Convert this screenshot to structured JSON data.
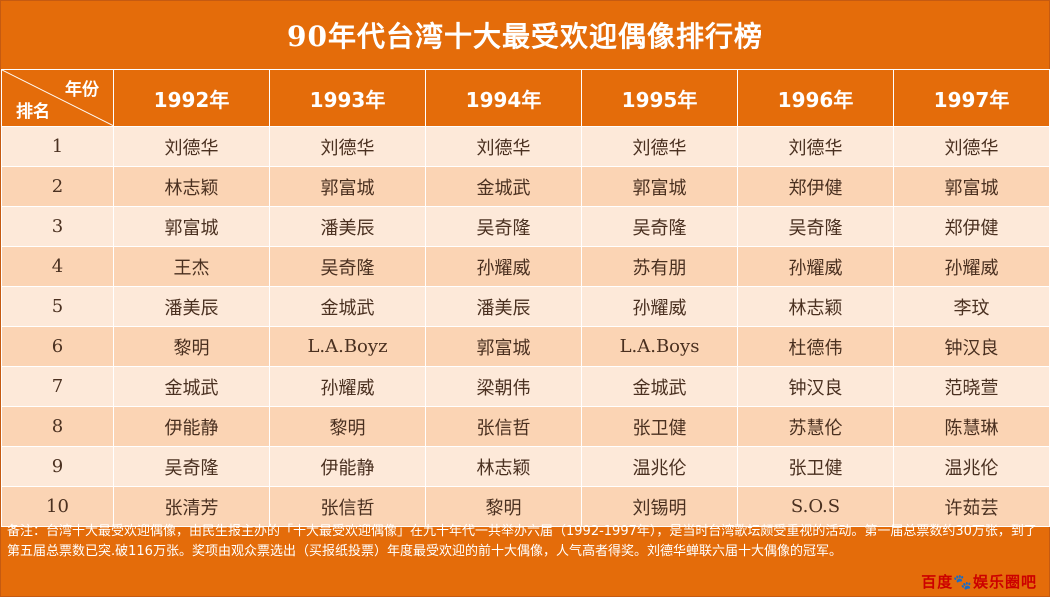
{
  "title": "90年代台湾十大最受欢迎偶像排行榜",
  "corner": {
    "column_label": "年份",
    "row_label": "排名"
  },
  "years": [
    "1992年",
    "1993年",
    "1994年",
    "1995年",
    "1996年",
    "1997年"
  ],
  "rows": [
    {
      "rank": "1",
      "names": [
        "刘德华",
        "刘德华",
        "刘德华",
        "刘德华",
        "刘德华",
        "刘德华"
      ]
    },
    {
      "rank": "2",
      "names": [
        "林志颖",
        "郭富城",
        "金城武",
        "郭富城",
        "郑伊健",
        "郭富城"
      ]
    },
    {
      "rank": "3",
      "names": [
        "郭富城",
        "潘美辰",
        "吴奇隆",
        "吴奇隆",
        "吴奇隆",
        "郑伊健"
      ]
    },
    {
      "rank": "4",
      "names": [
        "王杰",
        "吴奇隆",
        "孙耀威",
        "苏有朋",
        "孙耀威",
        "孙耀威"
      ]
    },
    {
      "rank": "5",
      "names": [
        "潘美辰",
        "金城武",
        "潘美辰",
        "孙耀威",
        "林志颖",
        "李玟"
      ]
    },
    {
      "rank": "6",
      "names": [
        "黎明",
        "L.A.Boyz",
        "郭富城",
        "L.A.Boys",
        "杜德伟",
        "钟汉良"
      ]
    },
    {
      "rank": "7",
      "names": [
        "金城武",
        "孙耀威",
        "梁朝伟",
        "金城武",
        "钟汉良",
        "范晓萱"
      ]
    },
    {
      "rank": "8",
      "names": [
        "伊能静",
        "黎明",
        "张信哲",
        "张卫健",
        "苏慧伦",
        "陈慧琳"
      ]
    },
    {
      "rank": "9",
      "names": [
        "吴奇隆",
        "伊能静",
        "林志颖",
        "温兆伦",
        "张卫健",
        "温兆伦"
      ]
    },
    {
      "rank": "10",
      "names": [
        "张清芳",
        "张信哲",
        "黎明",
        "刘锡明",
        "S.O.S",
        "许茹芸"
      ]
    }
  ],
  "note": "备注：台湾十大最受欢迎偶像，由民生报主办的「十大最受欢迎偶像」在九十年代一共举办六届（1992-1997年），是当时台湾歌坛颇受重视的活动。第一届总票数约30万张，到了第五届总票数已突.破116万张。奖项由观众票选出（买报纸投票）年度最受欢迎的前十大偶像，人气高者得奖。刘德华蝉联六届十大偶像的冠军。",
  "watermark": {
    "left": "百度",
    "icon": "paw-icon",
    "right": "娱乐圈吧"
  },
  "colors": {
    "header": "#e46c0a",
    "row_light": "#fde9d9",
    "row_dark": "#fbd4b4",
    "watermark": "#cc0000"
  }
}
